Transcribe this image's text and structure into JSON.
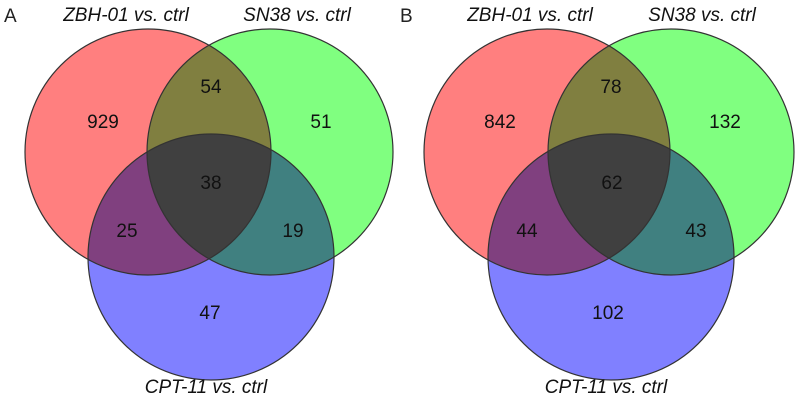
{
  "colors": {
    "set_a": "#ff7f7f",
    "set_b": "#80ff80",
    "set_c": "#8080ff"
  },
  "panels": [
    {
      "panel_label": "A",
      "sets": {
        "zbh01": "ZBH-01 vs. ctrl",
        "sn38": "SN38 vs. ctrl",
        "cpt11": "CPT-11 vs. ctrl"
      },
      "counts": {
        "zbh01_only": "929",
        "sn38_only": "51",
        "cpt11_only": "47",
        "zbh01_sn38": "54",
        "zbh01_cpt11": "25",
        "sn38_cpt11": "19",
        "all_three": "38"
      }
    },
    {
      "panel_label": "B",
      "sets": {
        "zbh01": "ZBH-01 vs. ctrl",
        "sn38": "SN38 vs. ctrl",
        "cpt11": "CPT-11 vs. ctrl"
      },
      "counts": {
        "zbh01_only": "842",
        "sn38_only": "132",
        "cpt11_only": "102",
        "zbh01_sn38": "78",
        "zbh01_cpt11": "44",
        "sn38_cpt11": "43",
        "all_three": "62"
      }
    }
  ]
}
